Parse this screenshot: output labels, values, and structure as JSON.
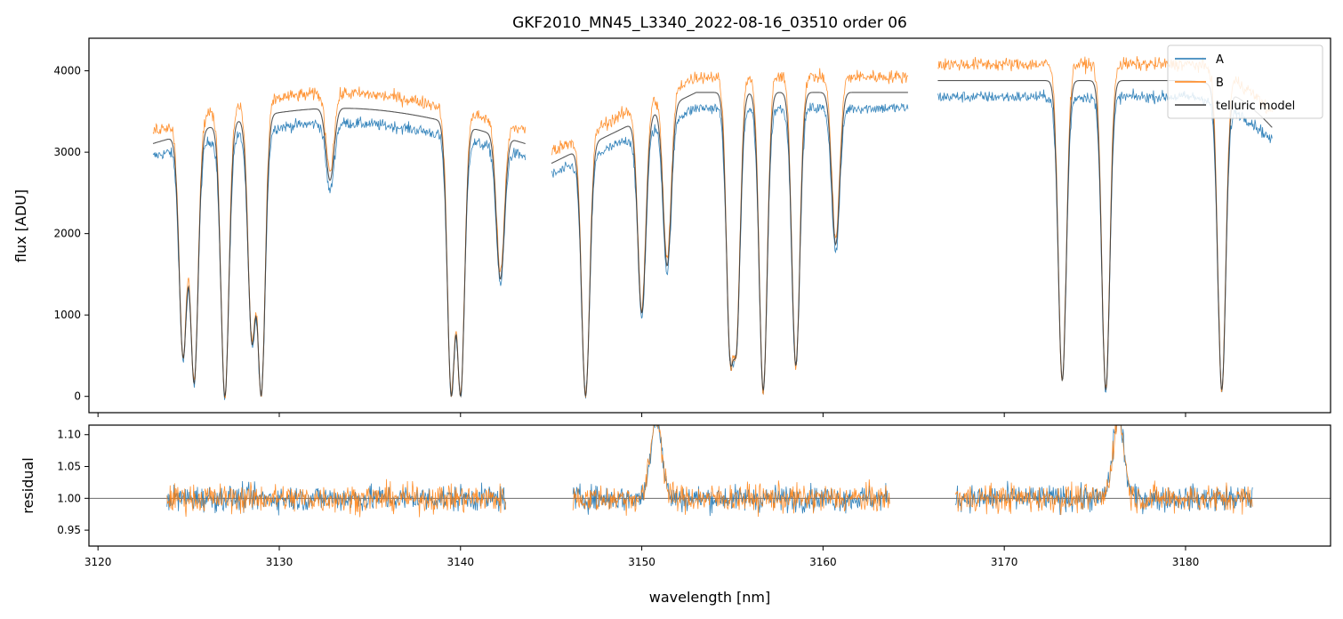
{
  "chart_data": [
    {
      "type": "line",
      "title": "GKF2010_MN45_L3340_2022-08-16_03510  order 06",
      "xlabel": "",
      "ylabel": "flux [ADU]",
      "xlim": [
        3119.5,
        3188.0
      ],
      "ylim": [
        -200,
        4400
      ],
      "yticks": [
        0,
        1000,
        2000,
        3000,
        4000
      ],
      "grid": false,
      "legend": "top-right",
      "series": [
        {
          "name": "A",
          "color": "#1f77b4"
        },
        {
          "name": "B",
          "color": "#ff7f0e"
        },
        {
          "name": "telluric model",
          "color": "#3a3a3a"
        }
      ],
      "telluric_absorption_lines": [
        {
          "center": 3124.7,
          "depth": 0.85
        },
        {
          "center": 3125.3,
          "depth": 0.95
        },
        {
          "center": 3127.0,
          "depth": 1.0
        },
        {
          "center": 3128.5,
          "depth": 0.8
        },
        {
          "center": 3129.0,
          "depth": 1.0
        },
        {
          "center": 3132.8,
          "depth": 0.25
        },
        {
          "center": 3139.5,
          "depth": 1.0
        },
        {
          "center": 3140.0,
          "depth": 1.0
        },
        {
          "center": 3142.2,
          "depth": 0.55
        },
        {
          "center": 3146.9,
          "depth": 1.0
        },
        {
          "center": 3150.0,
          "depth": 0.7
        },
        {
          "center": 3151.4,
          "depth": 0.55
        },
        {
          "center": 3154.9,
          "depth": 0.85
        },
        {
          "center": 3155.2,
          "depth": 0.8
        },
        {
          "center": 3156.7,
          "depth": 0.98
        },
        {
          "center": 3158.5,
          "depth": 0.9
        },
        {
          "center": 3160.7,
          "depth": 0.5
        },
        {
          "center": 3173.2,
          "depth": 0.95
        },
        {
          "center": 3175.6,
          "depth": 0.98
        },
        {
          "center": 3182.0,
          "depth": 0.98
        }
      ]
    },
    {
      "type": "line",
      "title": "",
      "xlabel": "wavelength [nm]",
      "ylabel": "residual",
      "xlim": [
        3119.5,
        3188.0
      ],
      "ylim": [
        0.925,
        1.115
      ],
      "xticks": [
        3120,
        3130,
        3140,
        3150,
        3160,
        3170,
        3180
      ],
      "yticks": [
        0.95,
        1.0,
        1.05,
        1.1
      ],
      "reference_line": 1.0,
      "segments": [
        {
          "x": [
            3123.8,
            3142.5
          ]
        },
        {
          "x": [
            3146.2,
            3163.7
          ]
        },
        {
          "x": [
            3167.3,
            3183.7
          ]
        }
      ],
      "series": [
        {
          "name": "A",
          "color": "#1f77b4"
        },
        {
          "name": "B",
          "color": "#ff7f0e"
        }
      ]
    }
  ]
}
